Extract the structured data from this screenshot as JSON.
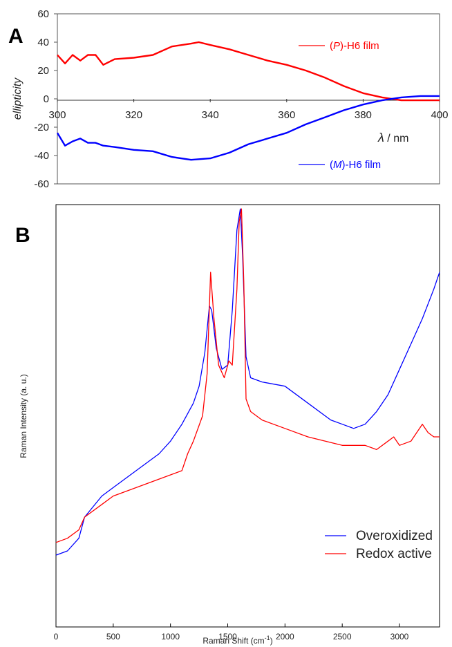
{
  "chart_data": [
    {
      "panel_label": "A",
      "type": "line",
      "xlabel_symbol": "λ",
      "xlabel_unit": " / nm",
      "ylabel": "ellipticity",
      "xlim": [
        300,
        400
      ],
      "ylim": [
        -60,
        60
      ],
      "x_ticks": [
        "300",
        "320",
        "340",
        "360",
        "380",
        "400"
      ],
      "y_ticks": [
        "60",
        "40",
        "20",
        "0",
        "-20",
        "-40",
        "-60"
      ],
      "grid": false,
      "legend_position": "right",
      "series": [
        {
          "name": "(P)-H6 film",
          "legend_prefix": "(",
          "legend_italic": "P",
          "legend_suffix": ")-H6 film",
          "color": "#ff0000",
          "x": [
            300,
            302,
            304,
            306,
            308,
            310,
            312,
            315,
            320,
            325,
            330,
            335,
            337,
            340,
            345,
            350,
            355,
            360,
            365,
            370,
            375,
            380,
            385,
            390,
            395,
            400
          ],
          "y": [
            31,
            25,
            31,
            27,
            31,
            31,
            24,
            28,
            29,
            31,
            37,
            39,
            40,
            38,
            35,
            31,
            27,
            24,
            20,
            15,
            9,
            4,
            1,
            -1,
            -1,
            -1
          ]
        },
        {
          "name": "(M)-H6 film",
          "legend_prefix": "(",
          "legend_italic": "M",
          "legend_suffix": ")-H6 film",
          "color": "#0000ff",
          "x": [
            300,
            302,
            304,
            306,
            308,
            310,
            312,
            315,
            320,
            325,
            330,
            335,
            340,
            345,
            350,
            355,
            360,
            365,
            370,
            375,
            380,
            385,
            390,
            395,
            400
          ],
          "y": [
            -24,
            -33,
            -30,
            -28,
            -31,
            -31,
            -33,
            -34,
            -36,
            -37,
            -41,
            -43,
            -42,
            -38,
            -32,
            -28,
            -24,
            -18,
            -13,
            -8,
            -4,
            -1,
            1,
            2,
            2
          ]
        }
      ]
    },
    {
      "panel_label": "B",
      "type": "line",
      "xlabel_main": "Raman Shift (cm",
      "xlabel_sup": "-1",
      "xlabel_end": ")",
      "ylabel": "Raman Intensity (a. u.)",
      "xlim": [
        0,
        3350
      ],
      "ylim": [
        0,
        100
      ],
      "x_ticks": [
        "0",
        "500",
        "1000",
        "1500",
        "2000",
        "2500",
        "3000"
      ],
      "grid": false,
      "legend_position": "bottom-right",
      "series": [
        {
          "name": "Overoxidized",
          "color": "#0000ff",
          "x": [
            0,
            100,
            200,
            250,
            400,
            500,
            700,
            900,
            1000,
            1100,
            1200,
            1250,
            1300,
            1340,
            1360,
            1400,
            1450,
            1500,
            1540,
            1580,
            1610,
            1630,
            1660,
            1700,
            1800,
            2000,
            2200,
            2400,
            2500,
            2600,
            2700,
            2800,
            2900,
            3000,
            3100,
            3200,
            3300,
            3350
          ],
          "y": [
            17,
            18,
            21,
            26,
            31,
            33,
            37,
            41,
            44,
            48,
            53,
            57,
            65,
            76,
            75,
            66,
            61,
            62,
            75,
            94,
            99,
            88,
            64,
            59,
            58,
            57,
            53,
            49,
            48,
            47,
            48,
            51,
            55,
            61,
            67,
            73,
            80,
            84
          ]
        },
        {
          "name": "Redox active",
          "color": "#ff0000",
          "x": [
            0,
            100,
            200,
            250,
            400,
            500,
            700,
            900,
            1000,
            1100,
            1150,
            1200,
            1280,
            1320,
            1350,
            1380,
            1420,
            1470,
            1510,
            1540,
            1580,
            1600,
            1620,
            1640,
            1660,
            1700,
            1800,
            2000,
            2200,
            2500,
            2700,
            2800,
            2900,
            2950,
            3000,
            3100,
            3200,
            3250,
            3300,
            3350
          ],
          "y": [
            20,
            21,
            23,
            26,
            29,
            31,
            33,
            35,
            36,
            37,
            41,
            44,
            50,
            60,
            84,
            73,
            62,
            59,
            63,
            62,
            80,
            96,
            99,
            82,
            54,
            51,
            49,
            47,
            45,
            43,
            43,
            42,
            44,
            45,
            43,
            44,
            48,
            46,
            45,
            45
          ]
        }
      ]
    }
  ]
}
